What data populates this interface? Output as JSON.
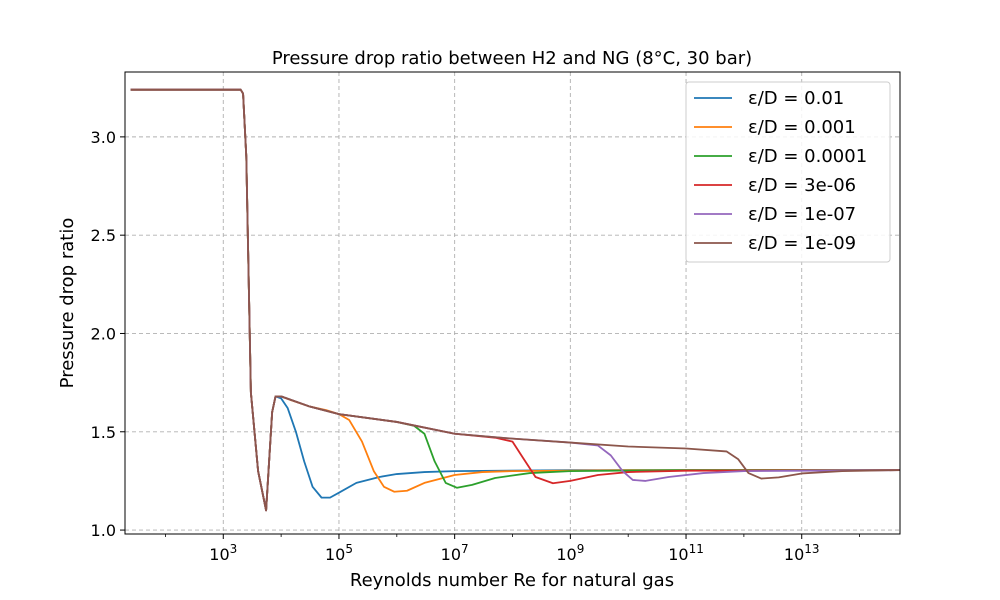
{
  "chart_data": {
    "type": "line",
    "title": "Pressure drop ratio between H2 and NG (8°C, 30 bar)",
    "xlabel": "Reynolds number Re for natural gas",
    "ylabel": "Pressure drop ratio",
    "xscale": "log",
    "xlim": [
      20,
      500000000000000
    ],
    "ylim": [
      0.98,
      3.33
    ],
    "grid": true,
    "legend_position": "top-right",
    "x_ticks": [
      {
        "value": 1000,
        "base": "10",
        "exp": "3"
      },
      {
        "value": 100000,
        "base": "10",
        "exp": "5"
      },
      {
        "value": 10000000,
        "base": "10",
        "exp": "7"
      },
      {
        "value": 1000000000,
        "base": "10",
        "exp": "9"
      },
      {
        "value": 100000000000,
        "base": "10",
        "exp": "11"
      },
      {
        "value": 10000000000000,
        "base": "10",
        "exp": "13"
      }
    ],
    "y_ticks": [
      {
        "value": 1.0,
        "label": "1.0"
      },
      {
        "value": 1.5,
        "label": "1.5"
      },
      {
        "value": 2.0,
        "label": "2.0"
      },
      {
        "value": 2.5,
        "label": "2.5"
      },
      {
        "value": 3.0,
        "label": "3.0"
      }
    ],
    "series": [
      {
        "name": "ε/D = 0.01",
        "color": "#1f77b4",
        "points": [
          [
            25,
            3.24
          ],
          [
            2000,
            3.24
          ],
          [
            2200,
            3.22
          ],
          [
            2500,
            2.9
          ],
          [
            3000,
            1.7
          ],
          [
            4000,
            1.3
          ],
          [
            5500,
            1.1
          ],
          [
            6200,
            1.35
          ],
          [
            7000,
            1.6
          ],
          [
            8000,
            1.68
          ],
          [
            10000,
            1.67
          ],
          [
            13000,
            1.62
          ],
          [
            18000,
            1.5
          ],
          [
            25000,
            1.35
          ],
          [
            35000,
            1.22
          ],
          [
            50000,
            1.165
          ],
          [
            70000,
            1.165
          ],
          [
            100000,
            1.19
          ],
          [
            200000,
            1.24
          ],
          [
            500000,
            1.27
          ],
          [
            1000000,
            1.285
          ],
          [
            3000000,
            1.295
          ],
          [
            10000000,
            1.3
          ],
          [
            1000000000,
            1.305
          ],
          [
            500000000000000,
            1.305
          ]
        ]
      },
      {
        "name": "ε/D = 0.001",
        "color": "#ff7f0e",
        "points": [
          [
            25,
            3.24
          ],
          [
            2000,
            3.24
          ],
          [
            2200,
            3.22
          ],
          [
            2500,
            2.9
          ],
          [
            3000,
            1.7
          ],
          [
            4000,
            1.3
          ],
          [
            5500,
            1.1
          ],
          [
            6200,
            1.35
          ],
          [
            7000,
            1.6
          ],
          [
            8000,
            1.68
          ],
          [
            10000,
            1.68
          ],
          [
            15000,
            1.66
          ],
          [
            30000,
            1.63
          ],
          [
            60000,
            1.61
          ],
          [
            100000,
            1.59
          ],
          [
            150000,
            1.56
          ],
          [
            250000,
            1.45
          ],
          [
            400000,
            1.3
          ],
          [
            600000,
            1.22
          ],
          [
            900000,
            1.195
          ],
          [
            1500000,
            1.2
          ],
          [
            3000000,
            1.24
          ],
          [
            10000000,
            1.28
          ],
          [
            30000000,
            1.295
          ],
          [
            100000000,
            1.3
          ],
          [
            10000000000,
            1.305
          ],
          [
            500000000000000,
            1.305
          ]
        ]
      },
      {
        "name": "ε/D = 0.0001",
        "color": "#2ca02c",
        "points": [
          [
            25,
            3.24
          ],
          [
            2000,
            3.24
          ],
          [
            2200,
            3.22
          ],
          [
            2500,
            2.9
          ],
          [
            3000,
            1.7
          ],
          [
            4000,
            1.3
          ],
          [
            5500,
            1.1
          ],
          [
            6200,
            1.35
          ],
          [
            7000,
            1.6
          ],
          [
            8000,
            1.68
          ],
          [
            10000,
            1.68
          ],
          [
            30000,
            1.63
          ],
          [
            100000,
            1.59
          ],
          [
            1000000,
            1.55
          ],
          [
            2000000,
            1.53
          ],
          [
            3000000,
            1.49
          ],
          [
            4500000,
            1.35
          ],
          [
            7000000,
            1.24
          ],
          [
            11000000,
            1.215
          ],
          [
            20000000,
            1.23
          ],
          [
            50000000,
            1.265
          ],
          [
            200000000,
            1.29
          ],
          [
            1000000000,
            1.3
          ],
          [
            100000000000,
            1.305
          ],
          [
            500000000000000,
            1.305
          ]
        ]
      },
      {
        "name": "ε/D = 3e-06",
        "color": "#d62728",
        "points": [
          [
            25,
            3.24
          ],
          [
            2000,
            3.24
          ],
          [
            2200,
            3.22
          ],
          [
            2500,
            2.9
          ],
          [
            3000,
            1.7
          ],
          [
            4000,
            1.3
          ],
          [
            5500,
            1.1
          ],
          [
            6200,
            1.35
          ],
          [
            7000,
            1.6
          ],
          [
            8000,
            1.68
          ],
          [
            10000,
            1.68
          ],
          [
            30000,
            1.63
          ],
          [
            100000,
            1.59
          ],
          [
            1000000,
            1.55
          ],
          [
            10000000,
            1.49
          ],
          [
            50000000,
            1.47
          ],
          [
            100000000,
            1.45
          ],
          [
            150000000,
            1.37
          ],
          [
            250000000,
            1.27
          ],
          [
            500000000,
            1.238
          ],
          [
            1000000000,
            1.25
          ],
          [
            3000000000,
            1.28
          ],
          [
            10000000000,
            1.295
          ],
          [
            100000000000,
            1.302
          ],
          [
            500000000000000,
            1.305
          ]
        ]
      },
      {
        "name": "ε/D = 1e-07",
        "color": "#9467bd",
        "points": [
          [
            25,
            3.24
          ],
          [
            2000,
            3.24
          ],
          [
            2200,
            3.22
          ],
          [
            2500,
            2.9
          ],
          [
            3000,
            1.7
          ],
          [
            4000,
            1.3
          ],
          [
            5500,
            1.1
          ],
          [
            6200,
            1.35
          ],
          [
            7000,
            1.6
          ],
          [
            8000,
            1.68
          ],
          [
            10000,
            1.68
          ],
          [
            30000,
            1.63
          ],
          [
            100000,
            1.59
          ],
          [
            1000000,
            1.55
          ],
          [
            10000000,
            1.49
          ],
          [
            100000000,
            1.465
          ],
          [
            1000000000,
            1.445
          ],
          [
            3000000000,
            1.43
          ],
          [
            5000000000,
            1.38
          ],
          [
            8000000000,
            1.3
          ],
          [
            12000000000,
            1.255
          ],
          [
            20000000000,
            1.25
          ],
          [
            50000000000,
            1.27
          ],
          [
            200000000000,
            1.29
          ],
          [
            1000000000000,
            1.3
          ],
          [
            500000000000000,
            1.305
          ]
        ]
      },
      {
        "name": "ε/D = 1e-09",
        "color": "#8c564b",
        "points": [
          [
            25,
            3.24
          ],
          [
            2000,
            3.24
          ],
          [
            2200,
            3.22
          ],
          [
            2500,
            2.9
          ],
          [
            3000,
            1.7
          ],
          [
            4000,
            1.3
          ],
          [
            5500,
            1.1
          ],
          [
            6200,
            1.35
          ],
          [
            7000,
            1.6
          ],
          [
            8000,
            1.68
          ],
          [
            10000,
            1.68
          ],
          [
            30000,
            1.63
          ],
          [
            100000,
            1.59
          ],
          [
            1000000,
            1.55
          ],
          [
            10000000,
            1.49
          ],
          [
            100000000,
            1.465
          ],
          [
            1000000000,
            1.445
          ],
          [
            10000000000,
            1.425
          ],
          [
            100000000000,
            1.415
          ],
          [
            500000000000,
            1.4
          ],
          [
            800000000000,
            1.36
          ],
          [
            1200000000000,
            1.29
          ],
          [
            2000000000000,
            1.262
          ],
          [
            4000000000000,
            1.268
          ],
          [
            10000000000000,
            1.288
          ],
          [
            50000000000000,
            1.3
          ],
          [
            500000000000000,
            1.305
          ]
        ]
      }
    ]
  }
}
